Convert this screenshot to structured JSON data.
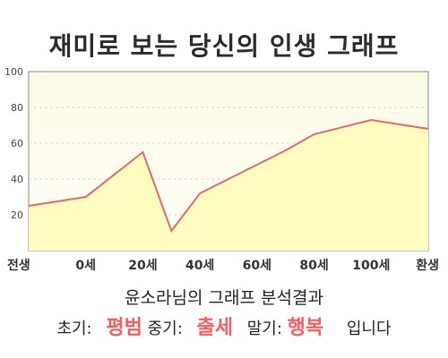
{
  "title": "재미로 보는 당신의 인생 그래프",
  "chart_data": {
    "type": "area",
    "categories": [
      "전생",
      "0세",
      "20세",
      "40세",
      "60세",
      "80세",
      "100세",
      "환생"
    ],
    "x": [
      -20,
      0,
      20,
      30,
      40,
      50,
      60,
      70,
      80,
      90,
      100,
      120
    ],
    "values": [
      25,
      30,
      55,
      11,
      32,
      40,
      48,
      56,
      65,
      69,
      73,
      68
    ],
    "yticks": [
      20,
      40,
      60,
      80,
      100
    ],
    "ylim": [
      0,
      100
    ],
    "xlim": [
      -20,
      120
    ],
    "grid": true,
    "colors": {
      "line": "#e06b6b",
      "fill": "#fffcc0",
      "grid": "#d6d6d6"
    }
  },
  "summary": "윤소라님의 그래프 분석결과",
  "result": {
    "early_label": "초기:",
    "early_value": "평범",
    "mid_label": "중기:",
    "mid_value": "출세",
    "late_label": "말기:",
    "late_value": "행복",
    "ending": "입니다"
  }
}
